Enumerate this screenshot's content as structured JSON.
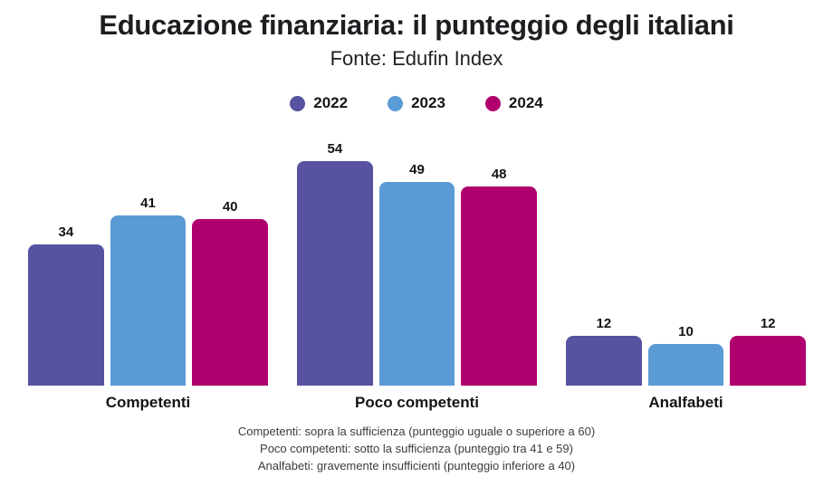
{
  "title": "Educazione finanziaria: il punteggio degli italiani",
  "subtitle": "Fonte: Edufin Index",
  "chart_data": {
    "type": "bar",
    "title": "Educazione finanziaria: il punteggio degli italiani",
    "subtitle": "Fonte: Edufin Index",
    "categories": [
      "Competenti",
      "Poco competenti",
      "Analfabeti"
    ],
    "series": [
      {
        "name": "2022",
        "color": "#5753A1",
        "values": [
          34,
          54,
          12
        ]
      },
      {
        "name": "2023",
        "color": "#5A9BD5",
        "values": [
          41,
          49,
          10
        ]
      },
      {
        "name": "2024",
        "color": "#B0006E",
        "values": [
          40,
          48,
          12
        ]
      }
    ],
    "value_labels": true,
    "legend_position": "top",
    "grid": false,
    "axes_visible": false,
    "ylim": [
      0,
      60
    ]
  },
  "footnotes": [
    "Competenti: sopra la sufficienza (punteggio uguale o superiore a 60)",
    "Poco competenti: sotto la sufficienza (punteggio tra 41 e 59)",
    "Analfabeti: gravemente insufficienti (punteggio inferiore a 40)"
  ]
}
